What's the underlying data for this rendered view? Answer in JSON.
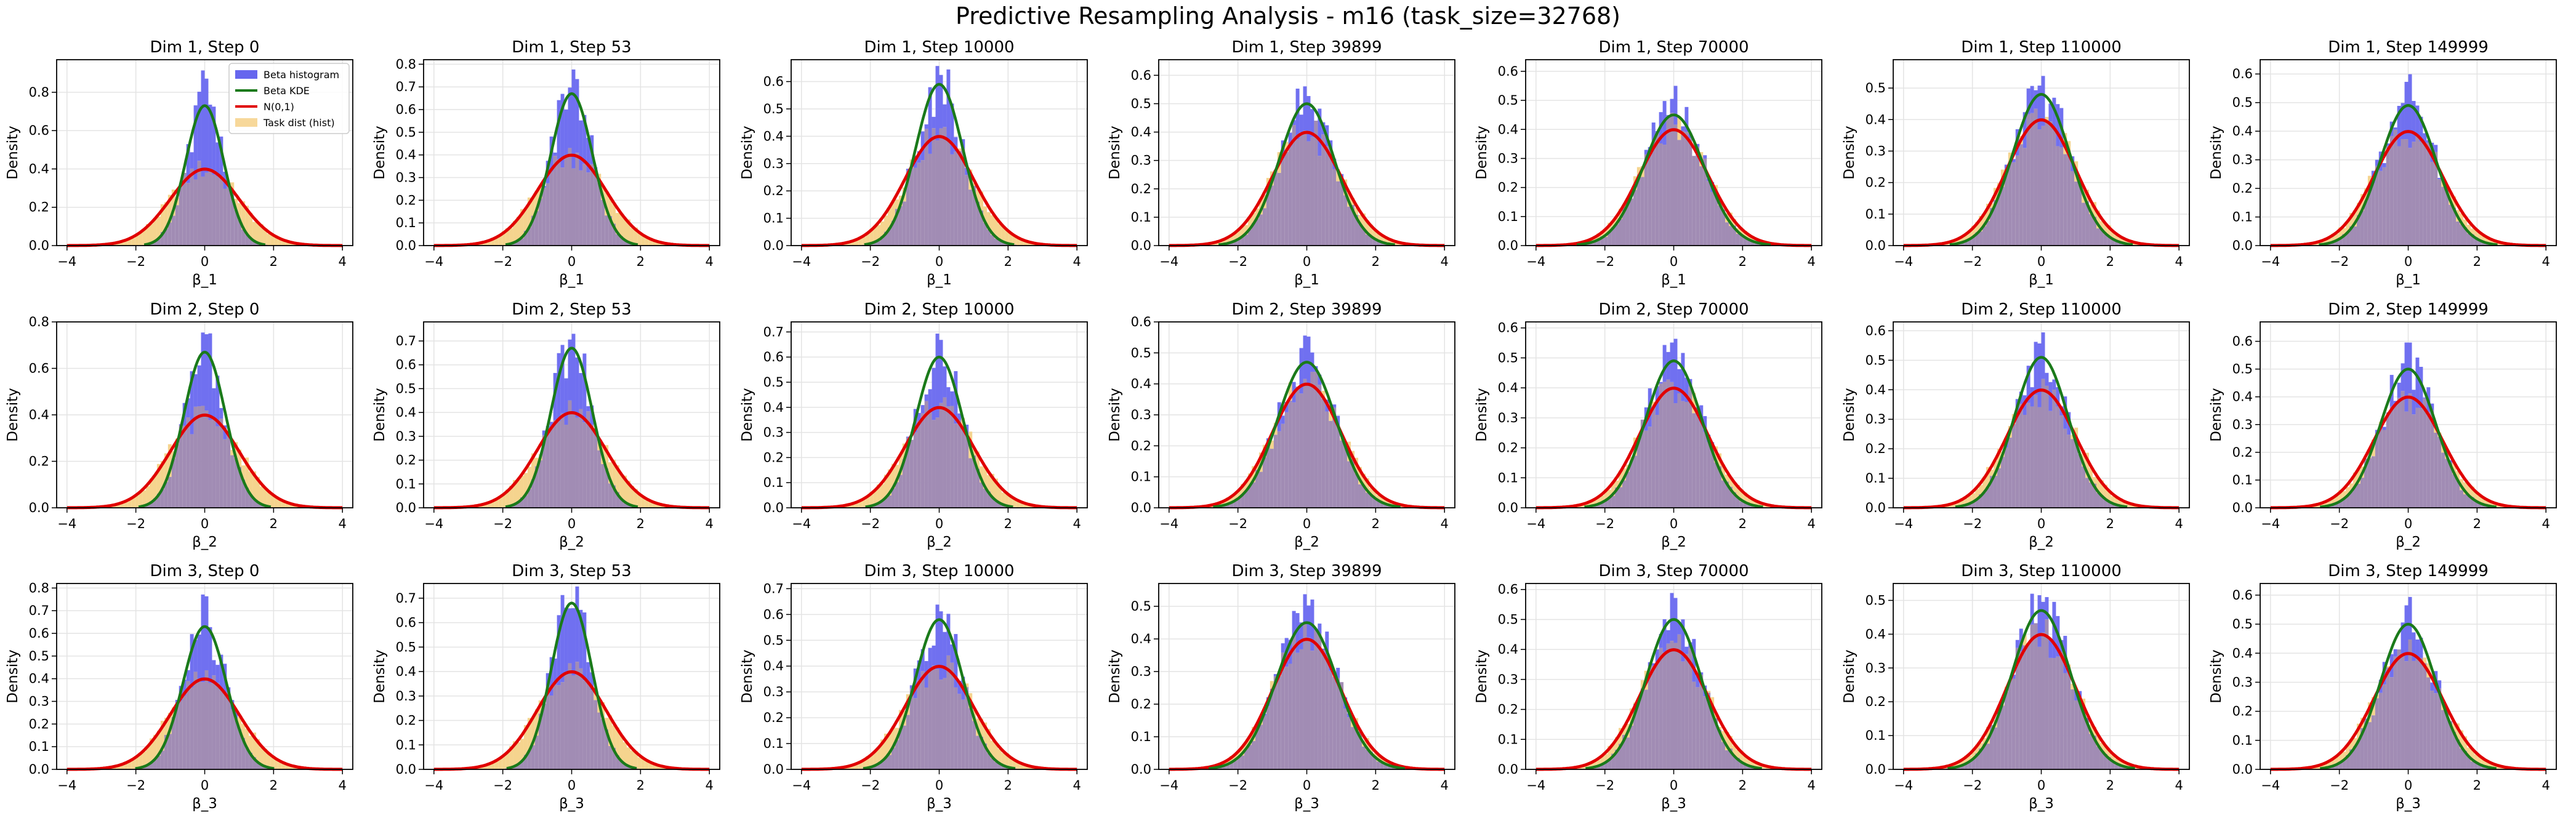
{
  "suptitle": "Predictive Resampling Analysis - m16 (task_size=32768)",
  "legend": {
    "location": "upper right of first panel",
    "entries": [
      {
        "label": "Beta histogram",
        "color": "#6666ee",
        "kind": "patch"
      },
      {
        "label": "Beta KDE",
        "color": "#1a7a1a",
        "kind": "line"
      },
      {
        "label": "N(0,1)",
        "color": "#e00000",
        "kind": "line"
      },
      {
        "label": "Task dist (hist)",
        "color": "#f7d89a",
        "kind": "patch"
      }
    ]
  },
  "colors": {
    "beta_hist": "#7070f0",
    "task_hist": "#f5d48e",
    "overlap": "#a18cb4",
    "kde": "#1a7a1a",
    "normal": "#e00000"
  },
  "chart_data": {
    "type": "histogram-grid",
    "rows": 3,
    "cols": 7,
    "xlim": [
      -4.3,
      4.3
    ],
    "xticks": [
      "-4",
      "-2",
      "0",
      "2",
      "4"
    ],
    "ylabel": "Density",
    "grid": true,
    "normal_peak": 0.399,
    "panels": [
      {
        "title": "Dim 1, Step 0",
        "xlabel": "β_1",
        "yticks": [
          "0.0",
          "0.2",
          "0.4",
          "0.6",
          "0.8"
        ],
        "ymax": 0.97,
        "kde_peak": 0.73,
        "kde_sd": 0.55,
        "hist_peak": 0.92
      },
      {
        "title": "Dim 1, Step 53",
        "xlabel": "β_1",
        "yticks": [
          "0.0",
          "0.1",
          "0.2",
          "0.3",
          "0.4",
          "0.5",
          "0.6",
          "0.7",
          "0.8"
        ],
        "ymax": 0.82,
        "kde_peak": 0.67,
        "kde_sd": 0.6,
        "hist_peak": 0.76
      },
      {
        "title": "Dim 1, Step 10000",
        "xlabel": "β_1",
        "yticks": [
          "0.0",
          "0.1",
          "0.2",
          "0.3",
          "0.4",
          "0.5",
          "0.6"
        ],
        "ymax": 0.68,
        "kde_peak": 0.59,
        "kde_sd": 0.68,
        "hist_peak": 0.64
      },
      {
        "title": "Dim 1, Step 39899",
        "xlabel": "β_1",
        "yticks": [
          "0.0",
          "0.1",
          "0.2",
          "0.3",
          "0.4",
          "0.5",
          "0.6"
        ],
        "ymax": 0.655,
        "kde_peak": 0.5,
        "kde_sd": 0.8,
        "hist_peak": 0.58
      },
      {
        "title": "Dim 1, Step 70000",
        "xlabel": "β_1",
        "yticks": [
          "0.0",
          "0.1",
          "0.2",
          "0.3",
          "0.4",
          "0.5",
          "0.6"
        ],
        "ymax": 0.64,
        "kde_peak": 0.45,
        "kde_sd": 0.88,
        "hist_peak": 0.56
      },
      {
        "title": "Dim 1, Step 110000",
        "xlabel": "β_1",
        "yticks": [
          "0.0",
          "0.1",
          "0.2",
          "0.3",
          "0.4",
          "0.5"
        ],
        "ymax": 0.59,
        "kde_peak": 0.48,
        "kde_sd": 0.83,
        "hist_peak": 0.56
      },
      {
        "title": "Dim 1, Step 149999",
        "xlabel": "β_1",
        "yticks": [
          "0.0",
          "0.1",
          "0.2",
          "0.3",
          "0.4",
          "0.5",
          "0.6"
        ],
        "ymax": 0.65,
        "kde_peak": 0.49,
        "kde_sd": 0.81,
        "hist_peak": 0.61
      },
      {
        "title": "Dim 2, Step 0",
        "xlabel": "β_2",
        "yticks": [
          "0.0",
          "0.2",
          "0.4",
          "0.6",
          "0.8"
        ],
        "ymax": 0.8,
        "kde_peak": 0.67,
        "kde_sd": 0.6,
        "hist_peak": 0.77
      },
      {
        "title": "Dim 2, Step 53",
        "xlabel": "β_2",
        "yticks": [
          "0.0",
          "0.1",
          "0.2",
          "0.3",
          "0.4",
          "0.5",
          "0.6",
          "0.7"
        ],
        "ymax": 0.78,
        "kde_peak": 0.67,
        "kde_sd": 0.6,
        "hist_peak": 0.75
      },
      {
        "title": "Dim 2, Step 10000",
        "xlabel": "β_2",
        "yticks": [
          "0.0",
          "0.1",
          "0.2",
          "0.3",
          "0.4",
          "0.5",
          "0.6",
          "0.7"
        ],
        "ymax": 0.74,
        "kde_peak": 0.6,
        "kde_sd": 0.67,
        "hist_peak": 0.7
      },
      {
        "title": "Dim 2, Step 39899",
        "xlabel": "β_2",
        "yticks": [
          "0.0",
          "0.1",
          "0.2",
          "0.3",
          "0.4",
          "0.5",
          "0.6"
        ],
        "ymax": 0.6,
        "kde_peak": 0.47,
        "kde_sd": 0.85,
        "hist_peak": 0.57
      },
      {
        "title": "Dim 2, Step 70000",
        "xlabel": "β_2",
        "yticks": [
          "0.0",
          "0.1",
          "0.2",
          "0.3",
          "0.4",
          "0.5",
          "0.6"
        ],
        "ymax": 0.62,
        "kde_peak": 0.49,
        "kde_sd": 0.81,
        "hist_peak": 0.59
      },
      {
        "title": "Dim 2, Step 110000",
        "xlabel": "β_2",
        "yticks": [
          "0.0",
          "0.1",
          "0.2",
          "0.3",
          "0.4",
          "0.5",
          "0.6"
        ],
        "ymax": 0.63,
        "kde_peak": 0.51,
        "kde_sd": 0.78,
        "hist_peak": 0.6
      },
      {
        "title": "Dim 2, Step 149999",
        "xlabel": "β_2",
        "yticks": [
          "0.0",
          "0.1",
          "0.2",
          "0.3",
          "0.4",
          "0.5",
          "0.6"
        ],
        "ymax": 0.67,
        "kde_peak": 0.5,
        "kde_sd": 0.8,
        "hist_peak": 0.63
      },
      {
        "title": "Dim 3, Step 0",
        "xlabel": "β_3",
        "yticks": [
          "0.0",
          "0.1",
          "0.2",
          "0.3",
          "0.4",
          "0.5",
          "0.6",
          "0.7",
          "0.8"
        ],
        "ymax": 0.82,
        "kde_peak": 0.63,
        "kde_sd": 0.63,
        "hist_peak": 0.78
      },
      {
        "title": "Dim 3, Step 53",
        "xlabel": "β_3",
        "yticks": [
          "0.0",
          "0.1",
          "0.2",
          "0.3",
          "0.4",
          "0.5",
          "0.6",
          "0.7"
        ],
        "ymax": 0.76,
        "kde_peak": 0.68,
        "kde_sd": 0.59,
        "hist_peak": 0.72
      },
      {
        "title": "Dim 3, Step 10000",
        "xlabel": "β_3",
        "yticks": [
          "0.0",
          "0.1",
          "0.2",
          "0.3",
          "0.4",
          "0.5",
          "0.6",
          "0.7"
        ],
        "ymax": 0.72,
        "kde_peak": 0.58,
        "kde_sd": 0.69,
        "hist_peak": 0.68
      },
      {
        "title": "Dim 3, Step 39899",
        "xlabel": "β_3",
        "yticks": [
          "0.0",
          "0.1",
          "0.2",
          "0.3",
          "0.4",
          "0.5"
        ],
        "ymax": 0.57,
        "kde_peak": 0.45,
        "kde_sd": 0.89,
        "hist_peak": 0.54
      },
      {
        "title": "Dim 3, Step 70000",
        "xlabel": "β_3",
        "yticks": [
          "0.0",
          "0.1",
          "0.2",
          "0.3",
          "0.4",
          "0.5",
          "0.6"
        ],
        "ymax": 0.62,
        "kde_peak": 0.5,
        "kde_sd": 0.8,
        "hist_peak": 0.59
      },
      {
        "title": "Dim 3, Step 110000",
        "xlabel": "β_3",
        "yticks": [
          "0.0",
          "0.1",
          "0.2",
          "0.3",
          "0.4",
          "0.5"
        ],
        "ymax": 0.55,
        "kde_peak": 0.47,
        "kde_sd": 0.85,
        "hist_peak": 0.52
      },
      {
        "title": "Dim 3, Step 149999",
        "xlabel": "β_3",
        "yticks": [
          "0.0",
          "0.1",
          "0.2",
          "0.3",
          "0.4",
          "0.5",
          "0.6"
        ],
        "ymax": 0.64,
        "kde_peak": 0.5,
        "kde_sd": 0.8,
        "hist_peak": 0.6
      }
    ]
  }
}
